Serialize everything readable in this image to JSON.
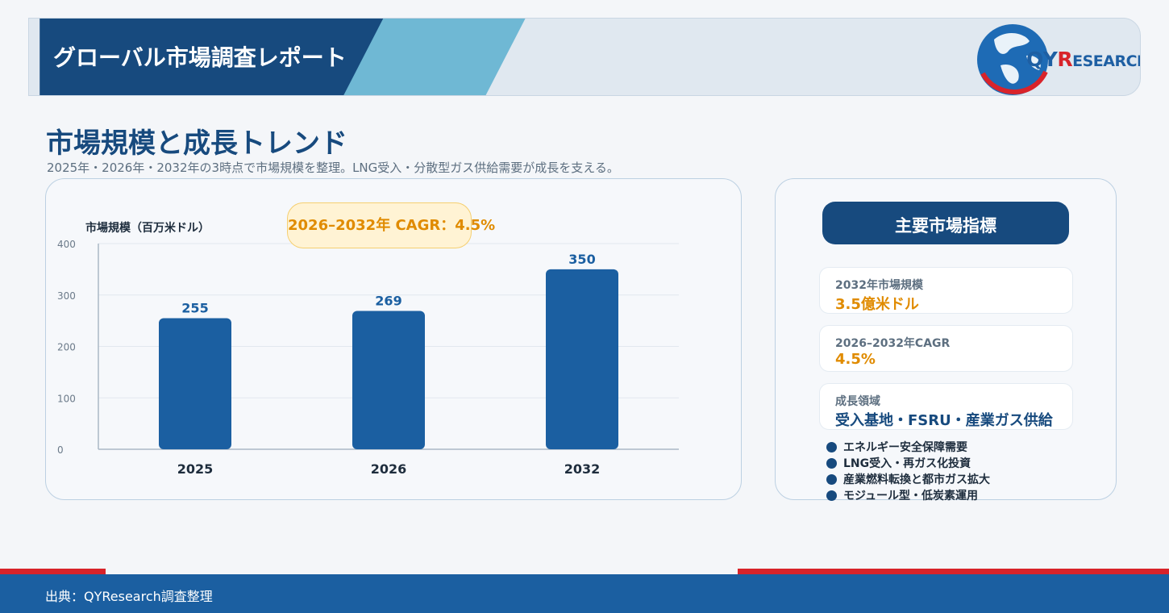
{
  "header": {
    "title": "グローバル市場調査レポート",
    "logo_q": "Q",
    "logo_y": "Y",
    "logo_r": "R",
    "logo_rest": "ESEARCH"
  },
  "section": {
    "title": "市場規模と成長トレンド",
    "subtitle": "2025年・2026年・2032年の3時点で市場規模を整理。LNG受入・分散型ガス供給需要が成長を支える。"
  },
  "chart_badge": "2026–2032年 CAGR：4.5%",
  "chart_data": {
    "type": "bar",
    "ylabel": "市場規模（百万米ドル）",
    "categories": [
      "2025",
      "2026",
      "2032"
    ],
    "values": [
      255,
      269,
      350
    ],
    "ylim": [
      0,
      400
    ],
    "yticks": [
      0,
      100,
      200,
      300,
      400
    ],
    "grid": true,
    "bar_color": "#1b5fa1"
  },
  "indicators": {
    "title": "主要市場指標",
    "items": [
      {
        "label": "2032年市場規模",
        "value": "3.5億米ドル"
      },
      {
        "label": "2026–2032年CAGR",
        "value": "4.5%"
      },
      {
        "label": "成長領域",
        "value": "受入基地・FSRU・産業ガス供給"
      }
    ],
    "bullets": [
      "エネルギー安全保障需要",
      "LNG受入・再ガス化投資",
      "産業燃料転換と都市ガス拡大",
      "モジュール型・低炭素運用"
    ]
  },
  "footer": {
    "source": "出典：QYResearch調査整理"
  },
  "colors": {
    "brand_dark": "#174a7e",
    "brand_blue": "#1b5fa1",
    "accent_orange": "#e08b00",
    "accent_red": "#d8232a",
    "light_blue": "#6fb8d4"
  }
}
